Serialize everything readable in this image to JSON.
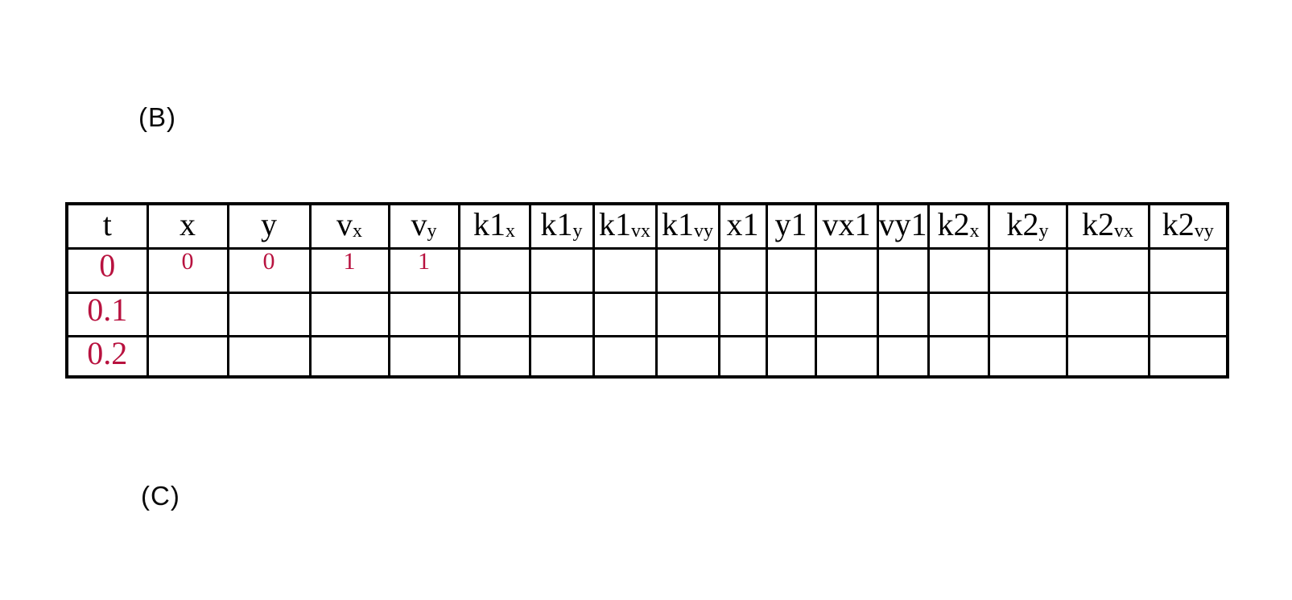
{
  "page": {
    "background": "#ffffff"
  },
  "labels": {
    "section_b": "(B)",
    "section_c": "(C)"
  },
  "table": {
    "grid_color": "#000000",
    "header_text_color": "#000000",
    "value_text_color": "#b8123f",
    "columns": [
      {
        "base": "t",
        "sub": ""
      },
      {
        "base": "x",
        "sub": ""
      },
      {
        "base": "y",
        "sub": ""
      },
      {
        "base": "v",
        "sub": "x"
      },
      {
        "base": "v",
        "sub": "y"
      },
      {
        "base": "k1",
        "sub": "x"
      },
      {
        "base": "k1",
        "sub": "y"
      },
      {
        "base": "k1",
        "sub": "vx"
      },
      {
        "base": "k1",
        "sub": "vy"
      },
      {
        "base": "x1",
        "sub": ""
      },
      {
        "base": "y1",
        "sub": ""
      },
      {
        "base": "vx1",
        "sub": ""
      },
      {
        "base": "vy1",
        "sub": ""
      },
      {
        "base": "k2",
        "sub": "x"
      },
      {
        "base": "k2",
        "sub": "y"
      },
      {
        "base": "k2",
        "sub": "vx"
      },
      {
        "base": "k2",
        "sub": "vy"
      }
    ],
    "rows": [
      {
        "cells": [
          "0",
          "0",
          "0",
          "1",
          "1",
          "",
          "",
          "",
          "",
          "",
          "",
          "",
          "",
          "",
          "",
          "",
          ""
        ]
      },
      {
        "cells": [
          "0.1",
          "",
          "",
          "",
          "",
          "",
          "",
          "",
          "",
          "",
          "",
          "",
          "",
          "",
          "",
          "",
          ""
        ]
      },
      {
        "cells": [
          "0.2",
          "",
          "",
          "",
          "",
          "",
          "",
          "",
          "",
          "",
          "",
          "",
          "",
          "",
          "",
          "",
          ""
        ]
      }
    ]
  }
}
